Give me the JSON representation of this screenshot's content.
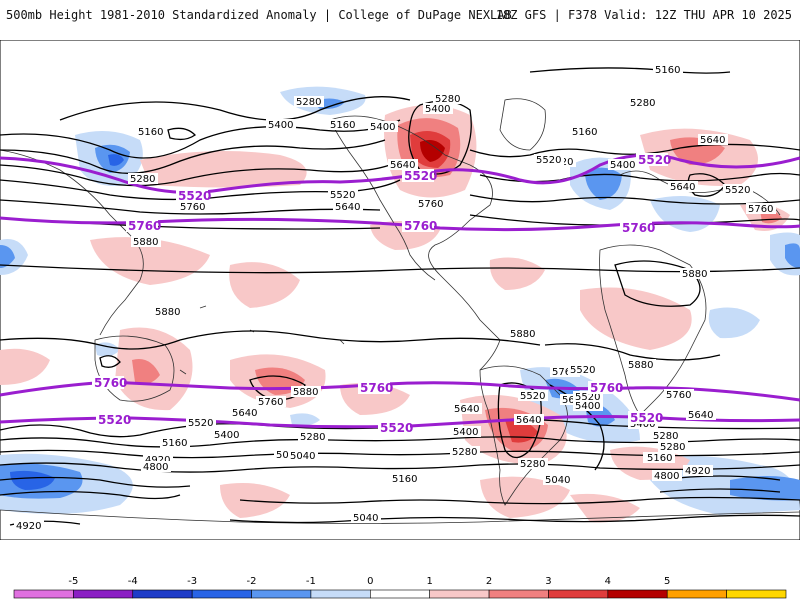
{
  "header": {
    "title_left": "500mb Height 1981-2010 Standardized Anomaly | College of DuPage NEXLAB",
    "title_right": "18Z GFS | F378 Valid: 12Z THU APR 10 2025"
  },
  "legend": {
    "ticks": [
      "-5",
      "-4",
      "-3",
      "-2",
      "-1",
      "0",
      "1",
      "2",
      "3",
      "4",
      "5"
    ],
    "colors": [
      "#e070e0",
      "#8b1ec4",
      "#1e3cc8",
      "#2864e6",
      "#5a96f0",
      "#c6dcf8",
      "#ffffff",
      "#f8c8c8",
      "#f08080",
      "#e03c3c",
      "#b40000",
      "#ffa000",
      "#ffd700"
    ]
  },
  "map": {
    "contour_labels": [
      "5160",
      "5280",
      "5400",
      "5160",
      "5280",
      "5400",
      "5520",
      "5640",
      "5160",
      "5280",
      "5400",
      "5520",
      "5640",
      "5760",
      "5880",
      "5160",
      "5280",
      "5400",
      "5520",
      "5640",
      "5760",
      "5880",
      "5640",
      "5520",
      "5760",
      "5880",
      "5880",
      "5880",
      "5640",
      "5760",
      "5880",
      "5760",
      "5640",
      "5520",
      "5400",
      "5280",
      "5160",
      "5040",
      "4920",
      "4800",
      "4920",
      "5640",
      "5520",
      "5400",
      "5280",
      "5160",
      "5040",
      "5040",
      "5280",
      "5160",
      "5040",
      "5160",
      "5400",
      "5280",
      "4920",
      "4800",
      "5520",
      "5640",
      "5760",
      "5520",
      "5400",
      "5280",
      "5640"
    ],
    "highlight_labels": [
      "5520",
      "5520",
      "5520",
      "5760",
      "5760",
      "5760",
      "5760",
      "5760",
      "5760",
      "5520",
      "5520",
      "5520"
    ],
    "colors": {
      "height_contour": "#000000",
      "highlight_contour": "#9a1ecf",
      "coastline": "#333333",
      "anomaly_neg_1": "#c6dcf8",
      "anomaly_neg_2": "#5a96f0",
      "anomaly_neg_3": "#2864e6",
      "anomaly_neg_4": "#1e3cc8",
      "anomaly_pos_1": "#f8c8c8",
      "anomaly_pos_2": "#f08080",
      "anomaly_pos_3": "#e03c3c",
      "anomaly_pos_4": "#b40000"
    }
  }
}
